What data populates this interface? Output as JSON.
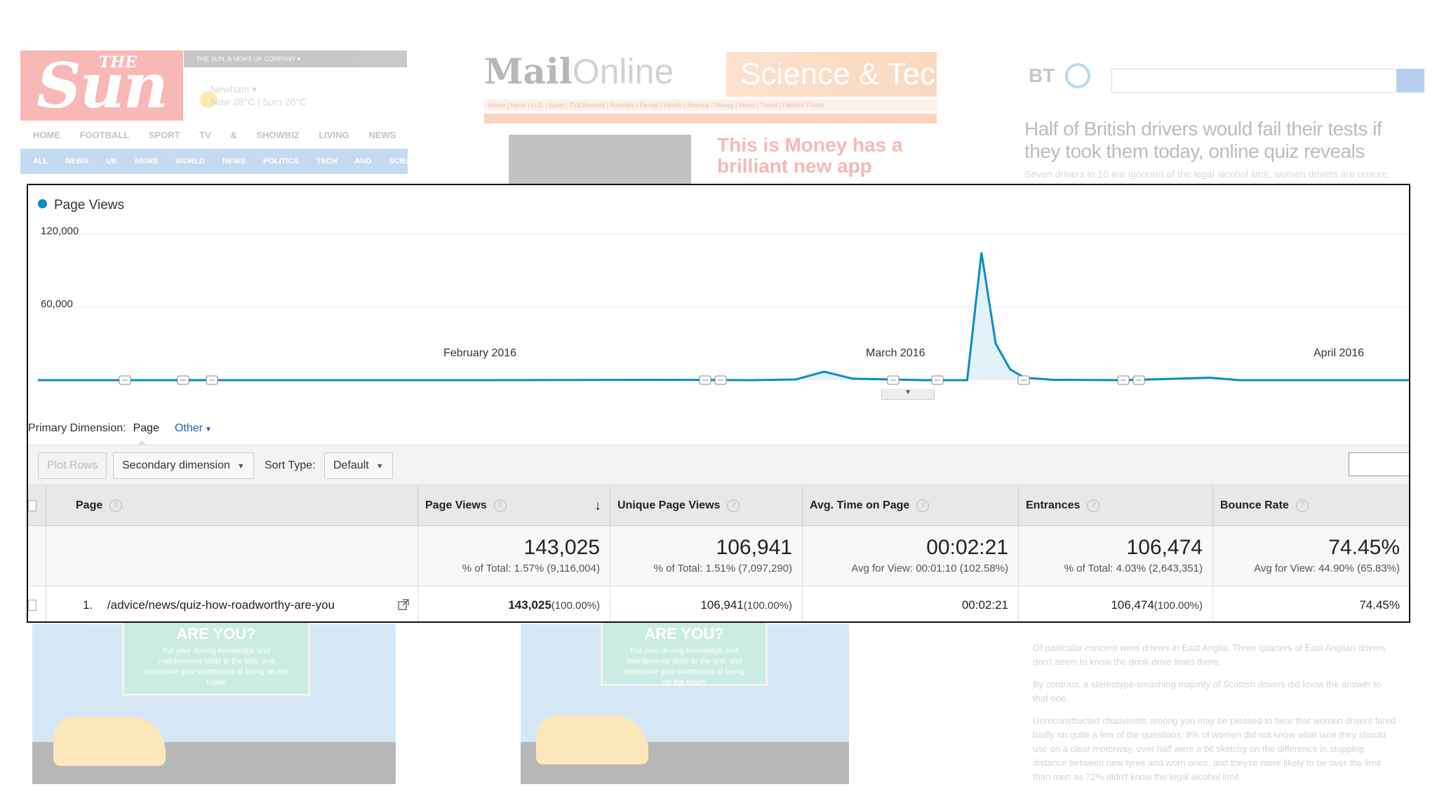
{
  "background": {
    "sun": {
      "logo": "Sun",
      "logo_the": "THE",
      "strip": "THE SUN, A NEWS UK COMPANY ▾",
      "weather_place": "Newham ▾",
      "weather_now": "Now 28°C  |  5pm 26°C",
      "nav": "HOME FOOTBALL SPORT TV & SHOWBIZ LIVING NEWS VIDEOS DRE",
      "subnav": "ALL NEWS UK NEWS WORLD NEWS POLITICS TECH AND SCIENCE OPINION"
    },
    "mail": {
      "logo_bold": "Mail",
      "logo_light": "Online",
      "banner": "Science & Tech",
      "nav": "Home | News | U.S. | Sport | TV&Showbiz | Australia | Femail | Health | Science | Money | Video | Travel | Fashion Finder",
      "ad": "This is Money has a brilliant new app"
    },
    "bt": {
      "logo": "BT",
      "headline": "Half of British drivers would fail their tests if they took them today, online quiz reveals",
      "sub": "Seven drivers in 10 are ignorant of the legal alcohol limit, women drivers are unsure",
      "body": [
        "Of particular concern were drivers in East Anglia. Three quarters of East Anglian drivers don't seem to know the drink-drive limits there.",
        "By contrast, a stereotype-smashing majority of Scottish drivers did know the answer to that one.",
        "Unreconstructed chauvinists among you may be pleased to hear that women drivers fared badly on quite a few of the questions: 8% of women did not know what lane they should use on a clear motorway, over half were a bit sketchy on the difference in stopping distance between new tyres and worn ones, and they're more likely to be over the limit than men as 72% didn't know the legal alcohol limit."
      ]
    },
    "promo": {
      "title": "ARE YOU?",
      "text": "Put your driving knowledge and maintenance skills to the test, and determine your worthiness of being on the roads"
    }
  },
  "chart": {
    "legend": "Page Views",
    "y_ticks": [
      "120,000",
      "60,000"
    ],
    "x_labels": [
      "February 2016",
      "March 2016",
      "April 2016"
    ],
    "line_color": "#058dc7"
  },
  "chart_data": {
    "type": "area",
    "title": "",
    "xlabel": "",
    "ylabel": "",
    "ylim": [
      0,
      120000
    ],
    "grid": true,
    "legend": "top-left",
    "series": [
      {
        "name": "Page Views",
        "points": [
          [
            "2016-01-10",
            0
          ],
          [
            "2016-02-10",
            0
          ],
          [
            "2016-02-22",
            300
          ],
          [
            "2016-02-29",
            0
          ],
          [
            "2016-03-03",
            600
          ],
          [
            "2016-03-05",
            7000
          ],
          [
            "2016-03-07",
            1200
          ],
          [
            "2016-03-12",
            0
          ],
          [
            "2016-03-15",
            0
          ],
          [
            "2016-03-16",
            105000
          ],
          [
            "2016-03-17",
            30000
          ],
          [
            "2016-03-18",
            9000
          ],
          [
            "2016-03-19",
            2000
          ],
          [
            "2016-03-21",
            300
          ],
          [
            "2016-03-26",
            0
          ],
          [
            "2016-04-01",
            2000
          ],
          [
            "2016-04-03",
            0
          ],
          [
            "2016-04-15",
            0
          ]
        ]
      }
    ]
  },
  "report": {
    "primary_dimension_label": "Primary Dimension:",
    "primary_dimension_value": "Page",
    "primary_dimension_other": "Other",
    "plot_rows": "Plot Rows",
    "secondary_dimension": "Secondary dimension",
    "sort_type_label": "Sort Type:",
    "sort_type_value": "Default"
  },
  "table": {
    "headers": {
      "page": "Page",
      "page_views": "Page Views",
      "unique_page_views": "Unique Page Views",
      "avg_time": "Avg. Time on Page",
      "entrances": "Entrances",
      "bounce_rate": "Bounce Rate"
    },
    "totals": {
      "page_views": "143,025",
      "page_views_sub": "% of Total: 1.57% (9,116,004)",
      "unique_page_views": "106,941",
      "unique_page_views_sub": "% of Total: 1.51% (7,097,290)",
      "avg_time": "00:02:21",
      "avg_time_sub": "Avg for View: 00:01:10 (102.58%)",
      "entrances": "106,474",
      "entrances_sub": "% of Total: 4.03% (2,643,351)",
      "bounce_rate": "74.45%",
      "bounce_rate_sub": "Avg for View: 44.90% (65.83%)"
    },
    "rows": [
      {
        "index": "1.",
        "page": "/advice/news/quiz-how-roadworthy-are-you",
        "page_views": "143,025",
        "page_views_pct": "(100.00%)",
        "unique_page_views": "106,941",
        "unique_page_views_pct": "(100.00%)",
        "avg_time": "00:02:21",
        "entrances": "106,474",
        "entrances_pct": "(100.00%)",
        "bounce_rate": "74.45%"
      }
    ]
  }
}
